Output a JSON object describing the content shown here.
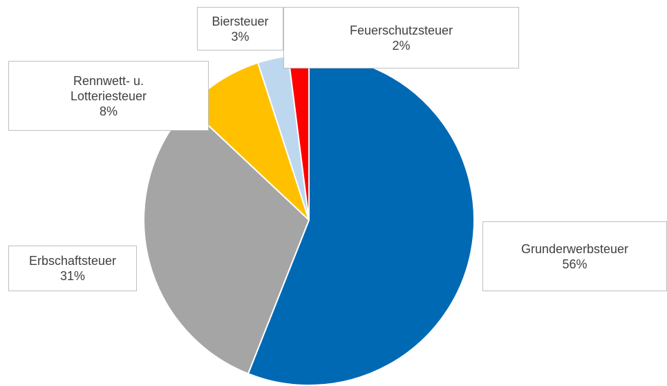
{
  "chart_data": {
    "type": "pie",
    "categories": [
      "Grunderwerbsteuer",
      "Erbschaftsteuer",
      "Rennwett- u. Lotteriesteuer",
      "Biersteuer",
      "Feuerschutzsteuer"
    ],
    "values": [
      56,
      31,
      8,
      3,
      2
    ],
    "value_labels": [
      "56%",
      "31%",
      "8%",
      "3%",
      "2%"
    ],
    "colors": [
      "#0069b4",
      "#a5a5a5",
      "#ffc000",
      "#bdd7ee",
      "#ff0000"
    ]
  }
}
